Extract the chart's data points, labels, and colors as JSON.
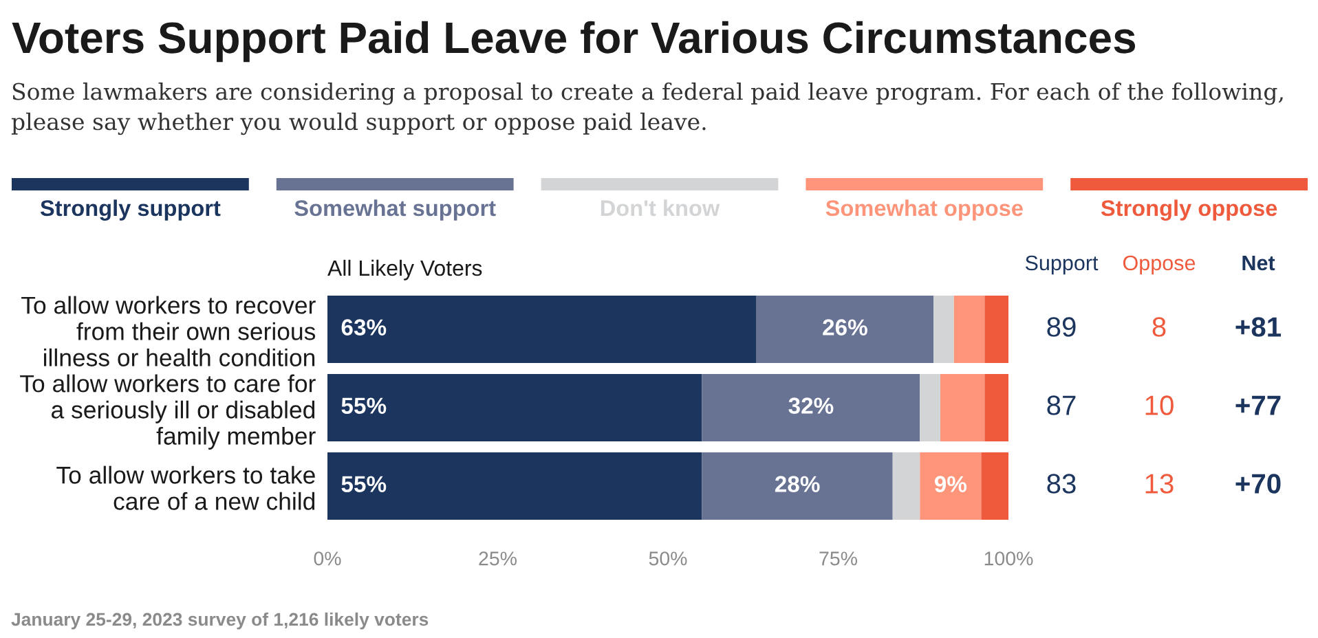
{
  "chart_data": {
    "type": "bar",
    "orientation": "horizontal",
    "stacked": true,
    "title": "Voters Support Paid Leave for Various Circumstances",
    "subtitle": "Some lawmakers are considering a proposal to create a federal paid leave program. For each of the following, please say whether you would support or oppose paid leave.",
    "categories": [
      "To allow workers to recover\nfrom their own serious\nillness or health condition",
      "To allow workers to care for\na seriously ill or disabled\nfamily member",
      "To allow workers to take\ncare of a new child"
    ],
    "series": [
      {
        "name": "Strongly support",
        "color": "#1c355e",
        "values": [
          63,
          55,
          55
        ],
        "value_labels": [
          "63%",
          "55%",
          "55%"
        ]
      },
      {
        "name": "Somewhat support",
        "color": "#687394",
        "values": [
          26,
          32,
          28
        ],
        "value_labels": [
          "26%",
          "32%",
          "28%"
        ]
      },
      {
        "name": "Don't know",
        "color": "#d3d4d6",
        "values": [
          3,
          3,
          4
        ]
      },
      {
        "name": "Somewhat oppose",
        "color": "#fe957a",
        "values": [
          4.5,
          6.5,
          9
        ],
        "value_labels": [
          null,
          null,
          "9%"
        ]
      },
      {
        "name": "Strongly oppose",
        "color": "#f05a3c",
        "values": [
          3.5,
          3.5,
          4
        ]
      }
    ],
    "xlim": [
      0,
      100
    ],
    "xticks": [
      {
        "value": 0,
        "label": "0%"
      },
      {
        "value": 25,
        "label": "25%"
      },
      {
        "value": 50,
        "label": "50%"
      },
      {
        "value": 75,
        "label": "75%"
      },
      {
        "value": 100,
        "label": "100%"
      }
    ],
    "legend": "top",
    "annotations": [
      "All Likely Voters",
      "Support",
      "Oppose",
      "Net",
      "89",
      "8",
      "+81",
      "87",
      "10",
      "+77",
      "83",
      "13",
      "+70",
      "January 25-29, 2023 survey of 1,216 likely voters"
    ]
  }
}
